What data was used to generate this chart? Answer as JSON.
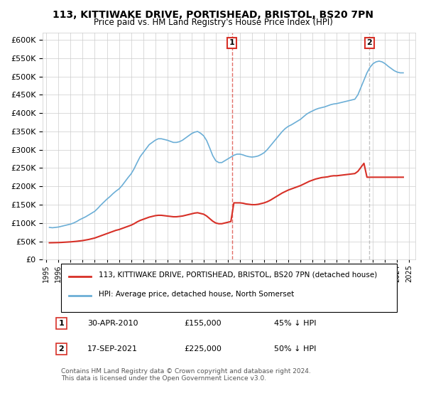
{
  "title": "113, KITTIWAKE DRIVE, PORTISHEAD, BRISTOL, BS20 7PN",
  "subtitle": "Price paid vs. HM Land Registry's House Price Index (HPI)",
  "legend_line1": "113, KITTIWAKE DRIVE, PORTISHEAD, BRISTOL, BS20 7PN (detached house)",
  "legend_line2": "HPI: Average price, detached house, North Somerset",
  "sale1_label": "1",
  "sale1_date": "30-APR-2010",
  "sale1_price": "£155,000",
  "sale1_hpi": "45% ↓ HPI",
  "sale2_label": "2",
  "sale2_date": "17-SEP-2021",
  "sale2_price": "£225,000",
  "sale2_hpi": "50% ↓ HPI",
  "footer": "Contains HM Land Registry data © Crown copyright and database right 2024.\nThis data is licensed under the Open Government Licence v3.0.",
  "hpi_color": "#6baed6",
  "price_color": "#d73027",
  "marker1_x": 2010.33,
  "marker2_x": 2021.71,
  "ylim": [
    0,
    620000
  ],
  "xlim_start": 1995,
  "xlim_end": 2025.5,
  "hpi_data": {
    "years": [
      1995.25,
      1995.5,
      1995.75,
      1996.0,
      1996.25,
      1996.5,
      1996.75,
      1997.0,
      1997.25,
      1997.5,
      1997.75,
      1998.0,
      1998.25,
      1998.5,
      1998.75,
      1999.0,
      1999.25,
      1999.5,
      1999.75,
      2000.0,
      2000.25,
      2000.5,
      2000.75,
      2001.0,
      2001.25,
      2001.5,
      2001.75,
      2002.0,
      2002.25,
      2002.5,
      2002.75,
      2003.0,
      2003.25,
      2003.5,
      2003.75,
      2004.0,
      2004.25,
      2004.5,
      2004.75,
      2005.0,
      2005.25,
      2005.5,
      2005.75,
      2006.0,
      2006.25,
      2006.5,
      2006.75,
      2007.0,
      2007.25,
      2007.5,
      2007.75,
      2008.0,
      2008.25,
      2008.5,
      2008.75,
      2009.0,
      2009.25,
      2009.5,
      2009.75,
      2010.0,
      2010.25,
      2010.5,
      2010.75,
      2011.0,
      2011.25,
      2011.5,
      2011.75,
      2012.0,
      2012.25,
      2012.5,
      2012.75,
      2013.0,
      2013.25,
      2013.5,
      2013.75,
      2014.0,
      2014.25,
      2014.5,
      2014.75,
      2015.0,
      2015.25,
      2015.5,
      2015.75,
      2016.0,
      2016.25,
      2016.5,
      2016.75,
      2017.0,
      2017.25,
      2017.5,
      2017.75,
      2018.0,
      2018.25,
      2018.5,
      2018.75,
      2019.0,
      2019.25,
      2019.5,
      2019.75,
      2020.0,
      2020.25,
      2020.5,
      2020.75,
      2021.0,
      2021.25,
      2021.5,
      2021.75,
      2022.0,
      2022.25,
      2022.5,
      2022.75,
      2023.0,
      2023.25,
      2023.5,
      2023.75,
      2024.0,
      2024.25,
      2024.5
    ],
    "values": [
      88000,
      87000,
      88000,
      89000,
      91000,
      93000,
      95000,
      97000,
      100000,
      104000,
      109000,
      113000,
      117000,
      122000,
      127000,
      132000,
      140000,
      149000,
      157000,
      165000,
      172000,
      180000,
      187000,
      193000,
      202000,
      213000,
      224000,
      234000,
      248000,
      265000,
      281000,
      292000,
      303000,
      314000,
      320000,
      326000,
      330000,
      330000,
      328000,
      326000,
      323000,
      320000,
      320000,
      322000,
      326000,
      332000,
      338000,
      344000,
      348000,
      350000,
      345000,
      338000,
      325000,
      305000,
      284000,
      270000,
      265000,
      265000,
      270000,
      275000,
      280000,
      285000,
      288000,
      288000,
      286000,
      283000,
      281000,
      280000,
      281000,
      283000,
      287000,
      292000,
      300000,
      310000,
      320000,
      330000,
      340000,
      350000,
      358000,
      364000,
      368000,
      373000,
      378000,
      383000,
      390000,
      397000,
      402000,
      406000,
      410000,
      413000,
      415000,
      417000,
      420000,
      423000,
      425000,
      426000,
      428000,
      430000,
      432000,
      434000,
      436000,
      438000,
      450000,
      470000,
      490000,
      510000,
      525000,
      535000,
      540000,
      542000,
      540000,
      535000,
      528000,
      522000,
      516000,
      512000,
      510000,
      510000
    ]
  },
  "price_data": {
    "years": [
      1995.25,
      1995.5,
      1995.75,
      1996.0,
      1996.25,
      1996.5,
      1996.75,
      1997.0,
      1997.25,
      1997.5,
      1997.75,
      1998.0,
      1998.25,
      1998.5,
      1998.75,
      1999.0,
      1999.25,
      1999.5,
      1999.75,
      2000.0,
      2000.25,
      2000.5,
      2000.75,
      2001.0,
      2001.25,
      2001.5,
      2001.75,
      2002.0,
      2002.25,
      2002.5,
      2002.75,
      2003.0,
      2003.25,
      2003.5,
      2003.75,
      2004.0,
      2004.25,
      2004.5,
      2004.75,
      2005.0,
      2005.25,
      2005.5,
      2005.75,
      2006.0,
      2006.25,
      2006.5,
      2006.75,
      2007.0,
      2007.25,
      2007.5,
      2007.75,
      2008.0,
      2008.25,
      2008.5,
      2008.75,
      2009.0,
      2009.25,
      2009.5,
      2009.75,
      2010.0,
      2010.25,
      2010.5,
      2010.75,
      2011.0,
      2011.25,
      2011.5,
      2011.75,
      2012.0,
      2012.25,
      2012.5,
      2012.75,
      2013.0,
      2013.25,
      2013.5,
      2013.75,
      2014.0,
      2014.25,
      2014.5,
      2014.75,
      2015.0,
      2015.25,
      2015.5,
      2015.75,
      2016.0,
      2016.25,
      2016.5,
      2016.75,
      2017.0,
      2017.25,
      2017.5,
      2017.75,
      2018.0,
      2018.25,
      2018.5,
      2018.75,
      2019.0,
      2019.25,
      2019.5,
      2019.75,
      2020.0,
      2020.25,
      2020.5,
      2020.75,
      2021.0,
      2021.25,
      2021.5,
      2021.75,
      2022.0,
      2022.25,
      2022.5,
      2022.75,
      2023.0,
      2023.25,
      2023.5,
      2023.75,
      2024.0,
      2024.25,
      2024.5
    ],
    "values": [
      46000,
      46200,
      46400,
      46600,
      47000,
      47500,
      48000,
      48500,
      49200,
      50000,
      51000,
      52000,
      53500,
      55000,
      57000,
      59000,
      62000,
      65000,
      68000,
      71000,
      74000,
      77000,
      80000,
      82000,
      85000,
      88000,
      91000,
      94000,
      98000,
      103000,
      107000,
      110000,
      113000,
      116000,
      118000,
      120000,
      121000,
      121000,
      120000,
      119000,
      118000,
      117000,
      117000,
      118000,
      119000,
      121000,
      123000,
      125000,
      127000,
      128000,
      126000,
      124000,
      119000,
      112000,
      105000,
      100000,
      98000,
      98000,
      100000,
      102000,
      104000,
      155000,
      155000,
      155000,
      154000,
      152000,
      151000,
      150000,
      150000,
      151000,
      153000,
      155000,
      158000,
      162000,
      167000,
      172000,
      177000,
      182000,
      186000,
      190000,
      193000,
      196000,
      199000,
      202000,
      206000,
      210000,
      214000,
      217000,
      220000,
      222000,
      224000,
      225000,
      226000,
      228000,
      229000,
      229000,
      230000,
      231000,
      232000,
      233000,
      234000,
      235000,
      241000,
      252000,
      263000,
      225000,
      225000,
      225000,
      225000,
      225000,
      225000,
      225000,
      225000,
      225000,
      225000,
      225000,
      225000,
      225000
    ]
  }
}
